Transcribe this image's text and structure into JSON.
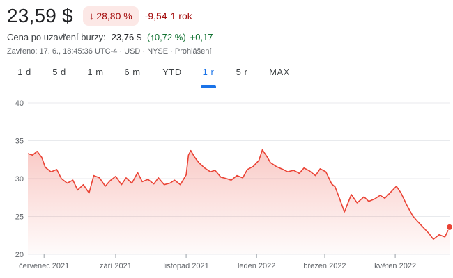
{
  "header": {
    "price": "23,59 $",
    "change_badge": "28,80 %",
    "change_abs": "-9,54",
    "change_period": "1 rok",
    "after_hours_label": "Cena po uzavření burzy:",
    "after_hours_price": "23,76 $",
    "after_hours_pct": "(↑0,72 %)",
    "after_hours_abs": "+0,17",
    "closed_info": "Zavřeno: 17. 6., 18:45:36 UTC-4 · USD · NYSE · Prohlášení"
  },
  "tabs": [
    "1 d",
    "5 d",
    "1 m",
    "6 m",
    "YTD",
    "1 r",
    "5 r",
    "MAX"
  ],
  "active_tab": "1 r",
  "colors": {
    "negative": "#ea4335",
    "negative_dark": "#a50e0e",
    "positive": "#137333",
    "accent": "#1a73e8"
  },
  "chart_data": {
    "type": "area",
    "y_ticks": [
      "40",
      "35",
      "30",
      "25",
      "20"
    ],
    "ylim": [
      20,
      40
    ],
    "x_ticks": [
      "červenec 2021",
      "září 2021",
      "listopad 2021",
      "leden 2022",
      "březen 2022",
      "květen 2022"
    ],
    "x_tick_dates": [
      "2021-07-01",
      "2021-09-01",
      "2021-11-01",
      "2022-01-01",
      "2022-03-01",
      "2022-05-01"
    ],
    "x_start_date": "2021-06-17",
    "x_end_date": "2022-06-17",
    "series": [
      {
        "x": [
          "2021-06-17",
          "2021-06-21",
          "2021-06-25",
          "2021-06-29",
          "2021-07-02",
          "2021-07-07",
          "2021-07-12",
          "2021-07-16",
          "2021-07-21",
          "2021-07-26",
          "2021-07-30",
          "2021-08-04",
          "2021-08-09",
          "2021-08-13",
          "2021-08-18",
          "2021-08-23",
          "2021-08-27",
          "2021-09-01",
          "2021-09-06",
          "2021-09-10",
          "2021-09-15",
          "2021-09-20",
          "2021-09-24",
          "2021-09-29",
          "2021-10-04",
          "2021-10-08",
          "2021-10-13",
          "2021-10-18",
          "2021-10-22",
          "2021-10-27",
          "2021-11-01",
          "2021-11-03",
          "2021-11-05",
          "2021-11-08",
          "2021-11-12",
          "2021-11-17",
          "2021-11-22",
          "2021-11-26",
          "2021-12-01",
          "2021-12-06",
          "2021-12-10",
          "2021-12-15",
          "2021-12-20",
          "2021-12-24",
          "2021-12-29",
          "2022-01-03",
          "2022-01-06",
          "2022-01-10",
          "2022-01-13",
          "2022-01-18",
          "2022-01-24",
          "2022-01-28",
          "2022-02-02",
          "2022-02-07",
          "2022-02-11",
          "2022-02-16",
          "2022-02-21",
          "2022-02-25",
          "2022-03-02",
          "2022-03-07",
          "2022-03-10",
          "2022-03-14",
          "2022-03-18",
          "2022-03-24",
          "2022-03-29",
          "2022-04-04",
          "2022-04-08",
          "2022-04-13",
          "2022-04-18",
          "2022-04-22",
          "2022-04-27",
          "2022-05-02",
          "2022-05-06",
          "2022-05-11",
          "2022-05-16",
          "2022-05-20",
          "2022-05-25",
          "2022-05-30",
          "2022-06-03",
          "2022-06-08",
          "2022-06-13",
          "2022-06-17"
        ],
        "values": [
          33.3,
          33.1,
          33.6,
          32.8,
          31.5,
          30.9,
          31.2,
          30.0,
          29.4,
          29.8,
          28.5,
          29.2,
          28.1,
          30.4,
          30.1,
          29.0,
          29.7,
          30.3,
          29.2,
          30.1,
          29.4,
          30.8,
          29.6,
          29.9,
          29.3,
          30.1,
          29.2,
          29.4,
          29.8,
          29.2,
          30.5,
          33.1,
          33.7,
          32.9,
          32.1,
          31.4,
          30.9,
          31.1,
          30.2,
          30.0,
          29.8,
          30.4,
          30.1,
          31.2,
          31.6,
          32.4,
          33.8,
          32.9,
          32.1,
          31.6,
          31.2,
          30.9,
          31.1,
          30.7,
          31.4,
          31.0,
          30.4,
          31.3,
          30.9,
          29.3,
          28.9,
          27.3,
          25.6,
          27.9,
          26.8,
          27.6,
          27.0,
          27.3,
          27.8,
          27.4,
          28.2,
          29.0,
          28.1,
          26.5,
          25.1,
          24.4,
          23.6,
          22.8,
          22.0,
          22.6,
          22.3,
          23.59
        ]
      }
    ],
    "last_value": 23.59
  }
}
